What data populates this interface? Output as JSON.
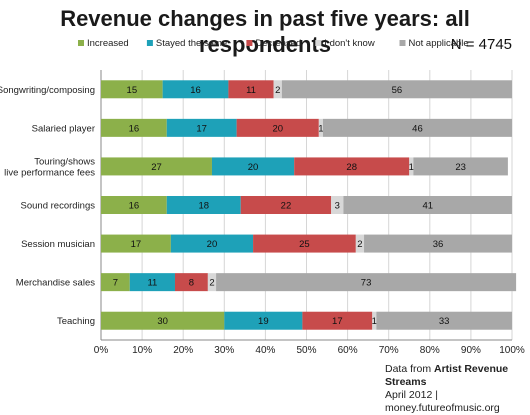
{
  "title": "Revenue changes in past five years: all respondents",
  "n_label": "N = 4745",
  "footer": {
    "source_prefix": "Data from ",
    "source_name": "Artist Revenue Streams",
    "line2": "April 2012 | money.futureofmusic.org"
  },
  "chart_data": {
    "type": "bar",
    "orientation": "horizontal",
    "stacked": true,
    "title": "Revenue changes in past five years: all respondents",
    "xlim": [
      0,
      100
    ],
    "x_ticks": [
      "0%",
      "10%",
      "20%",
      "30%",
      "40%",
      "50%",
      "60%",
      "70%",
      "80%",
      "90%",
      "100%"
    ],
    "legend_position": "top",
    "grid": true,
    "categories": [
      "Songwriting/composing",
      "Salaried player",
      "Touring/shows\nlive performance fees",
      "Sound recordings",
      "Session musician",
      "Merchandise sales",
      "Teaching"
    ],
    "series": [
      {
        "name": "Increased",
        "color": "#8cb04a",
        "values": [
          15,
          16,
          27,
          16,
          17,
          7,
          30
        ]
      },
      {
        "name": "Stayed the same",
        "color": "#1ea1b8",
        "values": [
          16,
          17,
          20,
          18,
          20,
          11,
          19
        ]
      },
      {
        "name": "Decreased",
        "color": "#c74b4b",
        "values": [
          11,
          20,
          28,
          22,
          25,
          8,
          17
        ]
      },
      {
        "name": "I don't know",
        "color": "#d8d8d8",
        "values": [
          2,
          1,
          1,
          3,
          2,
          2,
          1
        ]
      },
      {
        "name": "Not applicable",
        "color": "#a8a8a8",
        "values": [
          56,
          46,
          23,
          41,
          36,
          73,
          33
        ]
      }
    ]
  }
}
